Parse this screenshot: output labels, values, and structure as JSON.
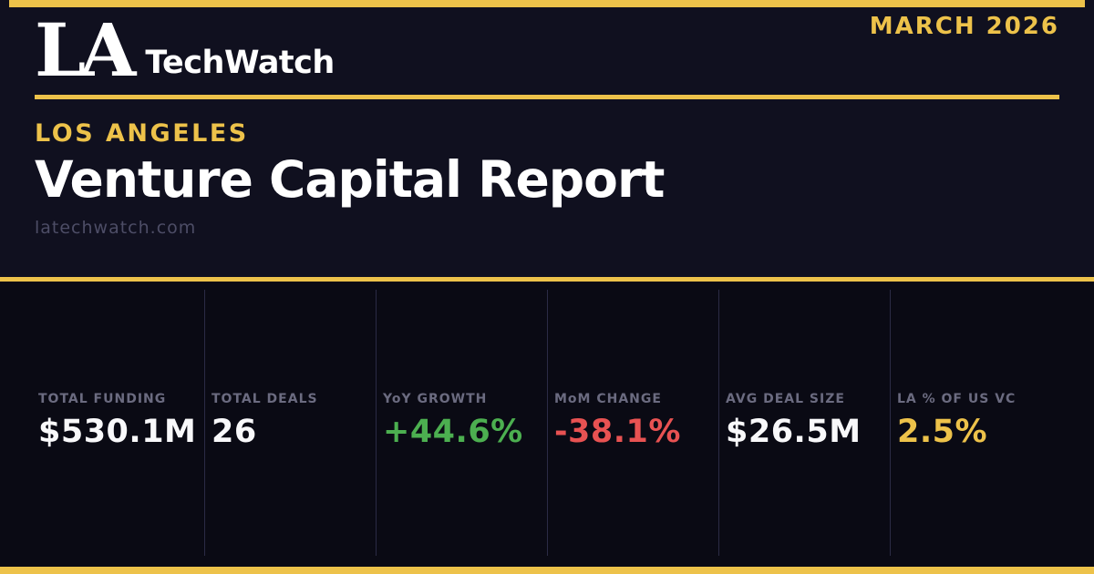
{
  "brand": {
    "logo_mark": "LA",
    "logo_name": "TechWatch"
  },
  "issue_date": "MARCH 2026",
  "header": {
    "location": "LOS ANGELES",
    "title": "Venture Capital Report",
    "website": "latechwatch.com"
  },
  "colors": {
    "gold": "#edc24a",
    "header_bg": "#10101f",
    "stats_bg": "#0a0a14",
    "divider": "#2b2b45",
    "label": "#6b6b80",
    "muted": "#4d4d66",
    "green": "#4caf50",
    "red": "#e85252",
    "white": "#f8f8fa"
  },
  "stats": [
    {
      "label": "TOTAL FUNDING",
      "value": "$530.1M",
      "value_color": "#f8f8fa"
    },
    {
      "label": "TOTAL DEALS",
      "value": "26",
      "value_color": "#f8f8fa"
    },
    {
      "label": "YoY GROWTH",
      "value": "+44.6%",
      "value_color": "#4caf50"
    },
    {
      "label": "MoM CHANGE",
      "value": "-38.1%",
      "value_color": "#e85252"
    },
    {
      "label": "AVG DEAL SIZE",
      "value": "$26.5M",
      "value_color": "#f8f8fa"
    },
    {
      "label": "LA % OF US VC",
      "value": "2.5%",
      "value_color": "#edc24a"
    }
  ]
}
